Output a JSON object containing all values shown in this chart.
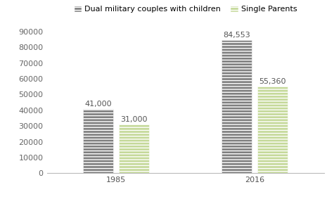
{
  "categories": [
    "1985",
    "2016"
  ],
  "series": [
    {
      "label": "Dual military couples with children",
      "values": [
        41000,
        84553
      ],
      "color": "#808080",
      "hatch": "----"
    },
    {
      "label": "Single Parents",
      "values": [
        31000,
        55360
      ],
      "color": "#c5d99a",
      "hatch": "----"
    }
  ],
  "bar_labels": [
    [
      "41,000",
      "84,553"
    ],
    [
      "31,000",
      "55,360"
    ]
  ],
  "ylim": [
    0,
    95000
  ],
  "yticks": [
    0,
    10000,
    20000,
    30000,
    40000,
    50000,
    60000,
    70000,
    80000,
    90000
  ],
  "ytick_labels": [
    "0",
    "10000",
    "20000",
    "30000",
    "40000",
    "50000",
    "60000",
    "70000",
    "80000",
    "90000"
  ],
  "background_color": "#ffffff",
  "legend_fontsize": 8,
  "bar_label_fontsize": 8,
  "tick_fontsize": 8,
  "bar_width": 0.22,
  "bar_gap": 0.04,
  "x_positions": [
    0.25,
    0.75
  ]
}
